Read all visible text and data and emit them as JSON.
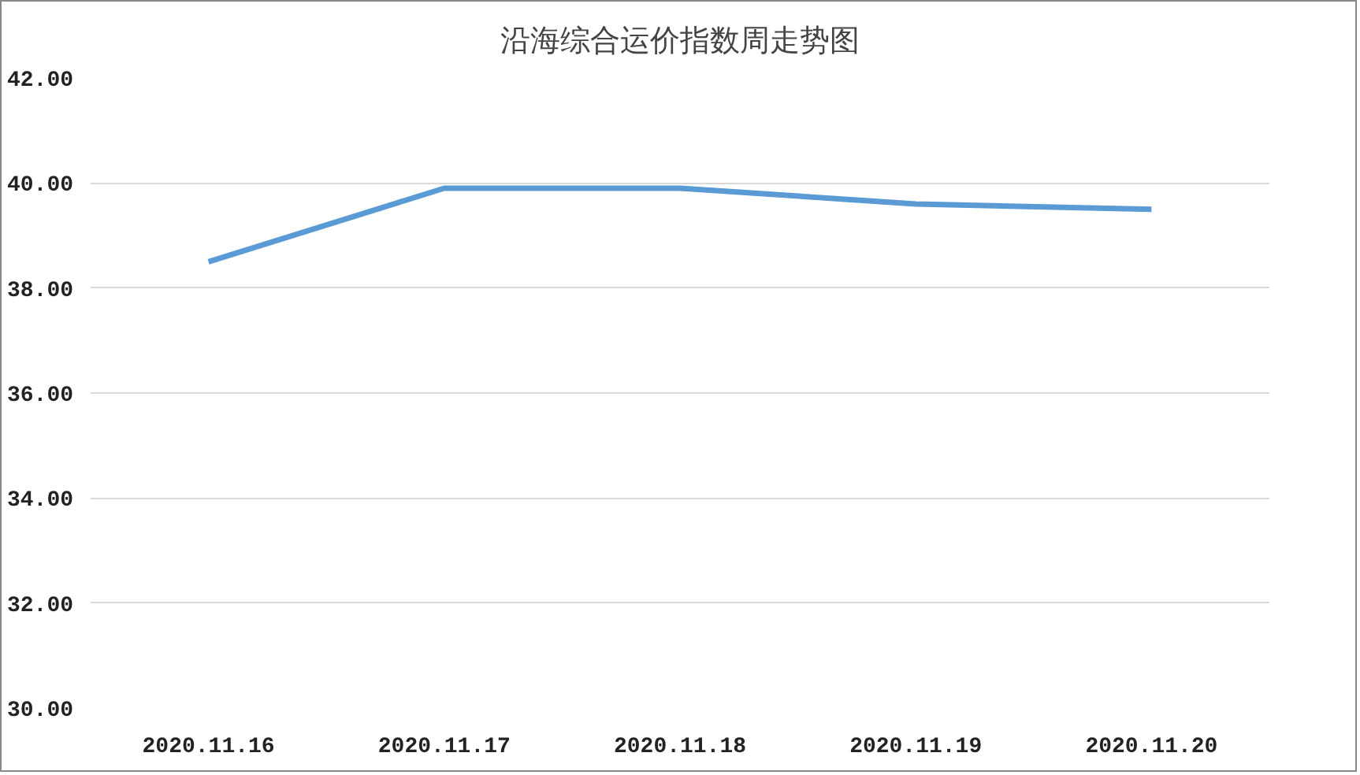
{
  "chart_data": {
    "type": "line",
    "title": "沿海综合运价指数周走势图",
    "categories": [
      "2020.11.16",
      "2020.11.17",
      "2020.11.18",
      "2020.11.19",
      "2020.11.20"
    ],
    "series": [
      {
        "color": "#5b9bd5",
        "values": [
          38.5,
          39.9,
          39.9,
          39.6,
          39.5
        ]
      }
    ],
    "ylim": [
      30,
      42
    ],
    "yticks": [
      {
        "value": 30,
        "label": "30.00"
      },
      {
        "value": 32,
        "label": "32.00"
      },
      {
        "value": 34,
        "label": "34.00"
      },
      {
        "value": 36,
        "label": "36.00"
      },
      {
        "value": 38,
        "label": "38.00"
      },
      {
        "value": 40,
        "label": "40.00"
      },
      {
        "value": 42,
        "label": "42.00"
      }
    ],
    "grid": "y",
    "line_style": "solid"
  }
}
